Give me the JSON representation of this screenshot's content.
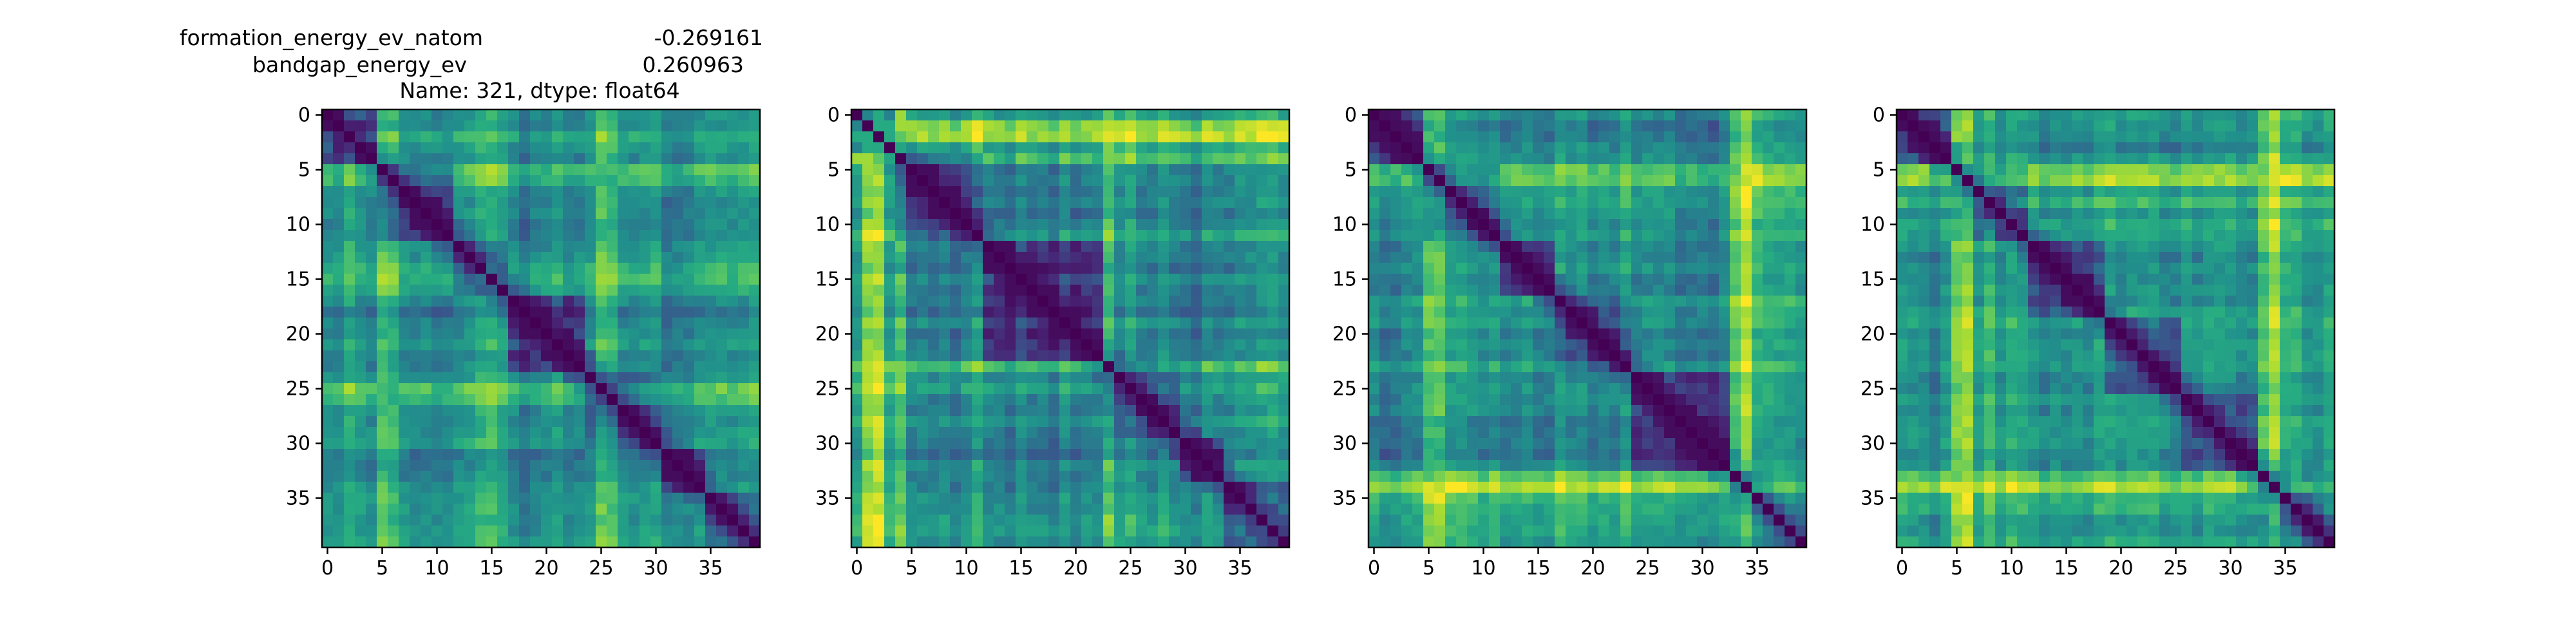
{
  "title": {
    "line1_name": "formation_energy_ev_natom",
    "line1_value": "-0.269161",
    "line2_name": "bandgap_energy_ev",
    "line2_value": "0.260963",
    "line3": "Name: 321, dtype: float64"
  },
  "chart_data": [
    {
      "type": "heatmap",
      "size": 40,
      "colormap": "viridis",
      "xticks": [
        0,
        5,
        10,
        15,
        20,
        25,
        30,
        35
      ],
      "yticks": [
        0,
        5,
        10,
        15,
        20,
        25,
        30,
        35
      ],
      "xlim": [
        -0.5,
        39.5
      ],
      "ylim": [
        39.5,
        -0.5
      ],
      "diagonal": 0,
      "vmin": 0,
      "vmax": 1,
      "seed": 11,
      "blocks": [
        0,
        5,
        12,
        17,
        24,
        31,
        35,
        40
      ],
      "block_levels": [
        0.55,
        0.4,
        0.62,
        0.35,
        0.5,
        0.42,
        0.58
      ],
      "hot_rows": [
        5,
        6,
        25,
        26
      ],
      "hot_cols": [
        5,
        25,
        26
      ]
    },
    {
      "type": "heatmap",
      "size": 40,
      "colormap": "viridis",
      "xticks": [
        0,
        5,
        10,
        15,
        20,
        25,
        30,
        35
      ],
      "yticks": [
        0,
        5,
        10,
        15,
        20,
        25,
        30,
        35
      ],
      "xlim": [
        -0.5,
        39.5
      ],
      "ylim": [
        39.5,
        -0.5
      ],
      "diagonal": 0,
      "vmin": 0,
      "vmax": 1,
      "seed": 23,
      "blocks": [
        0,
        4,
        12,
        23,
        30,
        34,
        40
      ],
      "block_levels": [
        0.7,
        0.45,
        0.35,
        0.55,
        0.4,
        0.5
      ],
      "hot_rows": [
        1,
        2,
        4,
        23
      ],
      "hot_cols": [
        1,
        2,
        4,
        23
      ]
    },
    {
      "type": "heatmap",
      "size": 40,
      "colormap": "viridis",
      "xticks": [
        0,
        5,
        10,
        15,
        20,
        25,
        30,
        35
      ],
      "yticks": [
        0,
        5,
        10,
        15,
        20,
        25,
        30,
        35
      ],
      "xlim": [
        -0.5,
        39.5
      ],
      "ylim": [
        39.5,
        -0.5
      ],
      "diagonal": 0,
      "vmin": 0,
      "vmax": 1,
      "seed": 37,
      "blocks": [
        0,
        5,
        12,
        17,
        24,
        33,
        40
      ],
      "block_levels": [
        0.45,
        0.55,
        0.4,
        0.5,
        0.38,
        0.62
      ],
      "hot_rows": [
        5,
        6,
        33,
        34
      ],
      "hot_cols": [
        5,
        6,
        33,
        34
      ]
    },
    {
      "type": "heatmap",
      "size": 40,
      "colormap": "viridis",
      "xticks": [
        0,
        5,
        10,
        15,
        20,
        25,
        30,
        35
      ],
      "yticks": [
        0,
        5,
        10,
        15,
        20,
        25,
        30,
        35
      ],
      "xlim": [
        -0.5,
        39.5
      ],
      "ylim": [
        39.5,
        -0.5
      ],
      "diagonal": 0,
      "vmin": 0,
      "vmax": 1,
      "seed": 41,
      "blocks": [
        0,
        5,
        12,
        19,
        26,
        33,
        40
      ],
      "block_levels": [
        0.45,
        0.55,
        0.42,
        0.5,
        0.4,
        0.6
      ],
      "hot_rows": [
        5,
        6,
        33,
        34
      ],
      "hot_cols": [
        5,
        6,
        33,
        34
      ]
    }
  ]
}
